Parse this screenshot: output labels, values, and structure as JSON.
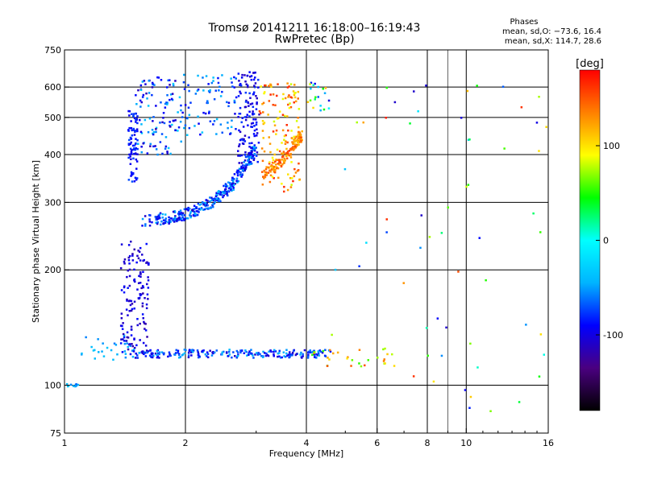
{
  "chart_data": {
    "type": "scatter",
    "title": "Tromsø 20141211 16:18:00–16:19:43",
    "subtitle": "RwPretec (Bp)",
    "xlabel": "Frequency [MHz]",
    "ylabel": "Stationary phase Virtual Height [km]",
    "x_scale": "log",
    "y_scale": "log",
    "xlim": [
      1,
      16
    ],
    "ylim": [
      75,
      750
    ],
    "x_ticks": [
      1,
      2,
      4,
      6,
      8,
      10,
      16
    ],
    "x_tick_labels": [
      "1",
      "2",
      "4",
      "6",
      "8",
      "10",
      "16"
    ],
    "x_grid": [
      2,
      4,
      6,
      8,
      10
    ],
    "x_minor_grid": [
      9
    ],
    "y_ticks": [
      75,
      100,
      200,
      300,
      400,
      500,
      600,
      750
    ],
    "y_tick_labels": [
      "75",
      "100",
      "200",
      "300",
      "400",
      "500",
      "600",
      "750"
    ],
    "y_grid": [
      100,
      200,
      300,
      400,
      500,
      600
    ],
    "grid": true,
    "colorbar": {
      "label": "[deg]",
      "range": [
        -180,
        180
      ],
      "ticks": [
        -100,
        0,
        100
      ],
      "tick_labels": [
        "-100",
        "0",
        "100"
      ],
      "stops": [
        "#000000",
        "#4a0080",
        "#0000ff",
        "#00b4ff",
        "#00ffff",
        "#00ff00",
        "#ffff00",
        "#ff8000",
        "#ff0000"
      ]
    },
    "phase_summary": {
      "title": "Phases",
      "line_o": "mean, sd,O: −73.6, 16.4",
      "line_x": "mean, sd,X: 114.7, 28.6"
    },
    "trace_groups": [
      {
        "name": "",
        "x_range": [
          1.0,
          1.08
        ],
        "y_range": [
          99,
          101
        ],
        "phase_range": [
          -70,
          -30
        ],
        "count": 10
      },
      {
        "name": "",
        "x_range": [
          1.1,
          1.5
        ],
        "y_range": [
          115,
          135
        ],
        "phase_range": [
          -60,
          -30
        ],
        "count": 30
      },
      {
        "name": "",
        "x_range": [
          1.38,
          1.62
        ],
        "y_range": [
          120,
          240
        ],
        "phase_range": [
          -120,
          -85
        ],
        "count": 140
      },
      {
        "name": "",
        "x_range": [
          1.5,
          4.6
        ],
        "y_range": [
          118,
          124
        ],
        "phase_range": [
          -110,
          -40
        ],
        "count": 220
      },
      {
        "name": "",
        "x_range": [
          4.1,
          6.8
        ],
        "y_range": [
          112,
          125
        ],
        "phase_range": [
          50,
          160
        ],
        "count": 30
      },
      {
        "name": "",
        "x_range": [
          1.5,
          1.95
        ],
        "y_range": [
          400,
          640
        ],
        "phase_range": [
          -120,
          -30
        ],
        "count": 110
      },
      {
        "name": "",
        "x_range": [
          1.95,
          2.7
        ],
        "y_range": [
          450,
          650
        ],
        "phase_range": [
          -100,
          -30
        ],
        "count": 80
      },
      {
        "name": "",
        "x_range": [
          2.7,
          3.05
        ],
        "y_range": [
          380,
          660
        ],
        "phase_range": [
          -115,
          -75
        ],
        "count": 130
      },
      {
        "name": "",
        "x_range": [
          3.05,
          3.85
        ],
        "y_range": [
          320,
          620
        ],
        "phase_range": [
          80,
          170
        ],
        "count": 130
      },
      {
        "name": "",
        "x_range": [
          4.0,
          4.6
        ],
        "y_range": [
          520,
          620
        ],
        "phase_range": [
          -110,
          120
        ],
        "count": 20
      },
      {
        "name": "",
        "x_range": [
          4.6,
          16.0
        ],
        "y_range": [
          85,
          640
        ],
        "phase_range": [
          -110,
          170
        ],
        "count": 60
      }
    ],
    "traces": [
      {
        "name": "",
        "shape": "curve",
        "x_start": 1.55,
        "x_end": 3.0,
        "h0": 260,
        "h1": 430,
        "pf": 3.05,
        "phase_range": [
          -110,
          -40
        ],
        "count": 320
      },
      {
        "name": "",
        "shape": "curve",
        "x_start": 3.1,
        "x_end": 3.9,
        "h0": 310,
        "h1": 460,
        "pf": 3.95,
        "phase_range": [
          110,
          160
        ],
        "count": 140
      },
      {
        "name": "",
        "shape": "vertical",
        "x_center": 1.48,
        "x_spread": 0.04,
        "y_range": [
          340,
          520
        ],
        "phase_range": [
          -100,
          -70
        ],
        "count": 80
      }
    ]
  }
}
